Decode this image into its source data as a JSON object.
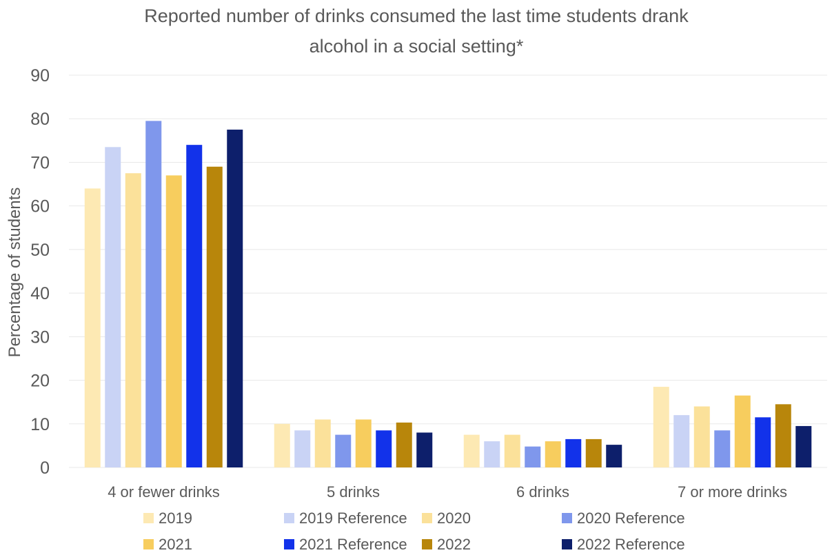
{
  "chart_data": {
    "type": "bar",
    "title": "Reported number of drinks consumed the last time students drank alcohol in a social setting*",
    "title_lines": [
      "Reported number of drinks consumed the last time students drank",
      "alcohol in a social setting*"
    ],
    "xlabel": "",
    "ylabel": "Percentage of students",
    "ylim": [
      0,
      90
    ],
    "yticks": [
      0,
      10,
      20,
      30,
      40,
      50,
      60,
      70,
      80,
      90
    ],
    "grid": true,
    "legend_position": "bottom",
    "categories": [
      "4 or fewer drinks",
      "5 drinks",
      "6 drinks",
      "7 or more drinks"
    ],
    "series": [
      {
        "name": "2019",
        "color": "#fde9b3",
        "values": [
          64,
          10,
          7.5,
          18.5
        ]
      },
      {
        "name": "2019 Reference",
        "color": "#c9d3f5",
        "values": [
          73.5,
          8.5,
          6,
          12
        ]
      },
      {
        "name": "2020",
        "color": "#fbe19a",
        "values": [
          67.5,
          11,
          7.5,
          14
        ]
      },
      {
        "name": "2020 Reference",
        "color": "#7f97ec",
        "values": [
          79.5,
          7.5,
          4.8,
          8.5
        ]
      },
      {
        "name": "2021",
        "color": "#f7cd5e",
        "values": [
          67,
          11,
          6,
          16.5
        ]
      },
      {
        "name": "2021 Reference",
        "color": "#1232ea",
        "values": [
          74,
          8.5,
          6.5,
          11.5
        ]
      },
      {
        "name": "2022",
        "color": "#b8860b",
        "values": [
          69,
          10.3,
          6.5,
          14.5
        ]
      },
      {
        "name": "2022 Reference",
        "color": "#0d1f6b",
        "values": [
          77.5,
          8,
          5.2,
          9.5
        ]
      }
    ]
  }
}
